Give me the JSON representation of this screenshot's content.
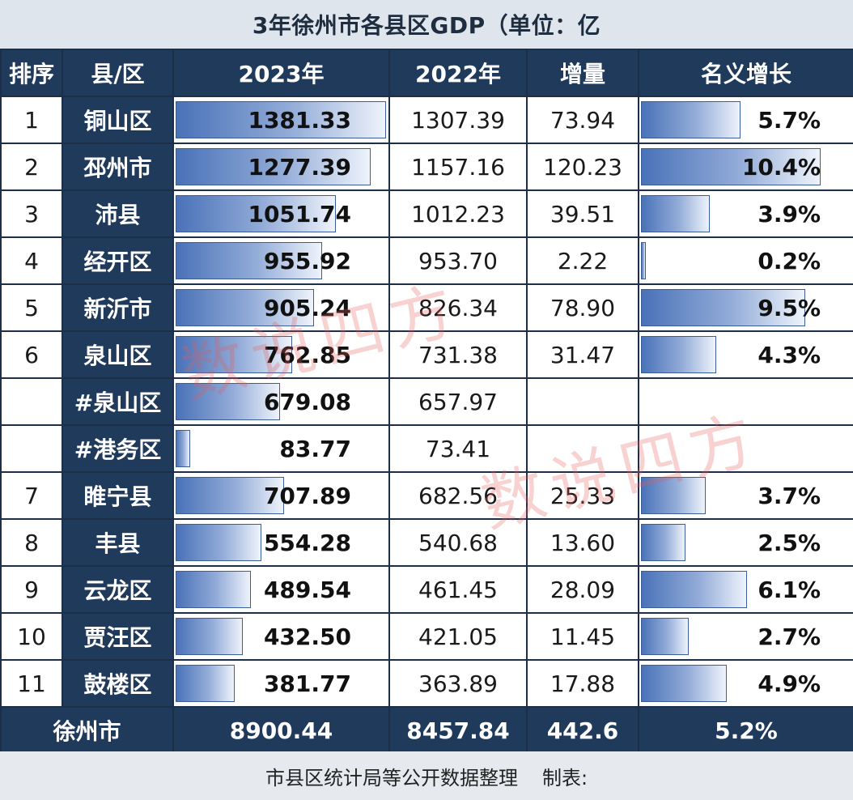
{
  "title": "3年徐州市各县区GDP（单位：亿",
  "headers": {
    "rank": "排序",
    "district": "县/区",
    "gdp2023": "2023年",
    "gdp2022": "2022年",
    "increase": "增量",
    "growth": "名义增长"
  },
  "rows": [
    {
      "rank": "1",
      "name": "铜山区",
      "v2023": "1381.33",
      "v2022": "1307.39",
      "inc": "73.94",
      "growth": "5.7%"
    },
    {
      "rank": "2",
      "name": "邳州市",
      "v2023": "1277.39",
      "v2022": "1157.16",
      "inc": "120.23",
      "growth": "10.4%"
    },
    {
      "rank": "3",
      "name": "沛县",
      "v2023": "1051.74",
      "v2022": "1012.23",
      "inc": "39.51",
      "growth": "3.9%"
    },
    {
      "rank": "4",
      "name": "经开区",
      "v2023": "955.92",
      "v2022": "953.70",
      "inc": "2.22",
      "growth": "0.2%"
    },
    {
      "rank": "5",
      "name": "新沂市",
      "v2023": "905.24",
      "v2022": "826.34",
      "inc": "78.90",
      "growth": "9.5%"
    },
    {
      "rank": "6",
      "name": "泉山区",
      "v2023": "762.85",
      "v2022": "731.38",
      "inc": "31.47",
      "growth": "4.3%"
    },
    {
      "rank": "",
      "name": "#泉山区",
      "v2023": "679.08",
      "v2022": "657.97",
      "inc": "",
      "growth": ""
    },
    {
      "rank": "",
      "name": "#港务区",
      "v2023": "83.77",
      "v2022": "73.41",
      "inc": "",
      "growth": ""
    },
    {
      "rank": "7",
      "name": "睢宁县",
      "v2023": "707.89",
      "v2022": "682.56",
      "inc": "25.33",
      "growth": "3.7%"
    },
    {
      "rank": "8",
      "name": "丰县",
      "v2023": "554.28",
      "v2022": "540.68",
      "inc": "13.60",
      "growth": "2.5%"
    },
    {
      "rank": "9",
      "name": "云龙区",
      "v2023": "489.54",
      "v2022": "461.45",
      "inc": "28.09",
      "growth": "6.1%"
    },
    {
      "rank": "10",
      "name": "贾汪区",
      "v2023": "432.50",
      "v2022": "421.05",
      "inc": "11.45",
      "growth": "2.7%"
    },
    {
      "rank": "11",
      "name": "鼓楼区",
      "v2023": "381.77",
      "v2022": "363.89",
      "inc": "17.88",
      "growth": "4.9%"
    }
  ],
  "total": {
    "name": "徐州市",
    "v2023": "8900.44",
    "v2022": "8457.84",
    "inc": "442.6",
    "growth": "5.2%"
  },
  "footer": {
    "source": "市县区统计局等公开数据整理",
    "made_by": "制表:"
  },
  "watermark": "数说四方",
  "chart_data": {
    "type": "table",
    "title": "3年徐州市各县区GDP（单位：亿",
    "columns": [
      "排序",
      "县/区",
      "2023年",
      "2022年",
      "增量",
      "名义增长"
    ],
    "categories": [
      "铜山区",
      "邳州市",
      "沛县",
      "经开区",
      "新沂市",
      "泉山区",
      "#泉山区",
      "#港务区",
      "睢宁县",
      "丰县",
      "云龙区",
      "贾汪区",
      "鼓楼区"
    ],
    "series": [
      {
        "name": "2023年",
        "values": [
          1381.33,
          1277.39,
          1051.74,
          955.92,
          905.24,
          762.85,
          679.08,
          83.77,
          707.89,
          554.28,
          489.54,
          432.5,
          381.77
        ]
      },
      {
        "name": "2022年",
        "values": [
          1307.39,
          1157.16,
          1012.23,
          953.7,
          826.34,
          731.38,
          657.97,
          73.41,
          682.56,
          540.68,
          461.45,
          421.05,
          363.89
        ]
      },
      {
        "name": "增量",
        "values": [
          73.94,
          120.23,
          39.51,
          2.22,
          78.9,
          31.47,
          null,
          null,
          25.33,
          13.6,
          28.09,
          11.45,
          17.88
        ]
      },
      {
        "name": "名义增长",
        "values": [
          5.7,
          10.4,
          3.9,
          0.2,
          9.5,
          4.3,
          null,
          null,
          3.7,
          2.5,
          6.1,
          2.7,
          4.9
        ]
      }
    ],
    "total": {
      "徐州市": {
        "2023年": 8900.44,
        "2022年": 8457.84,
        "增量": 442.6,
        "名义增长": 5.2
      }
    },
    "colors": {
      "header": "#203a5c",
      "bar": "#4a72b8"
    }
  }
}
